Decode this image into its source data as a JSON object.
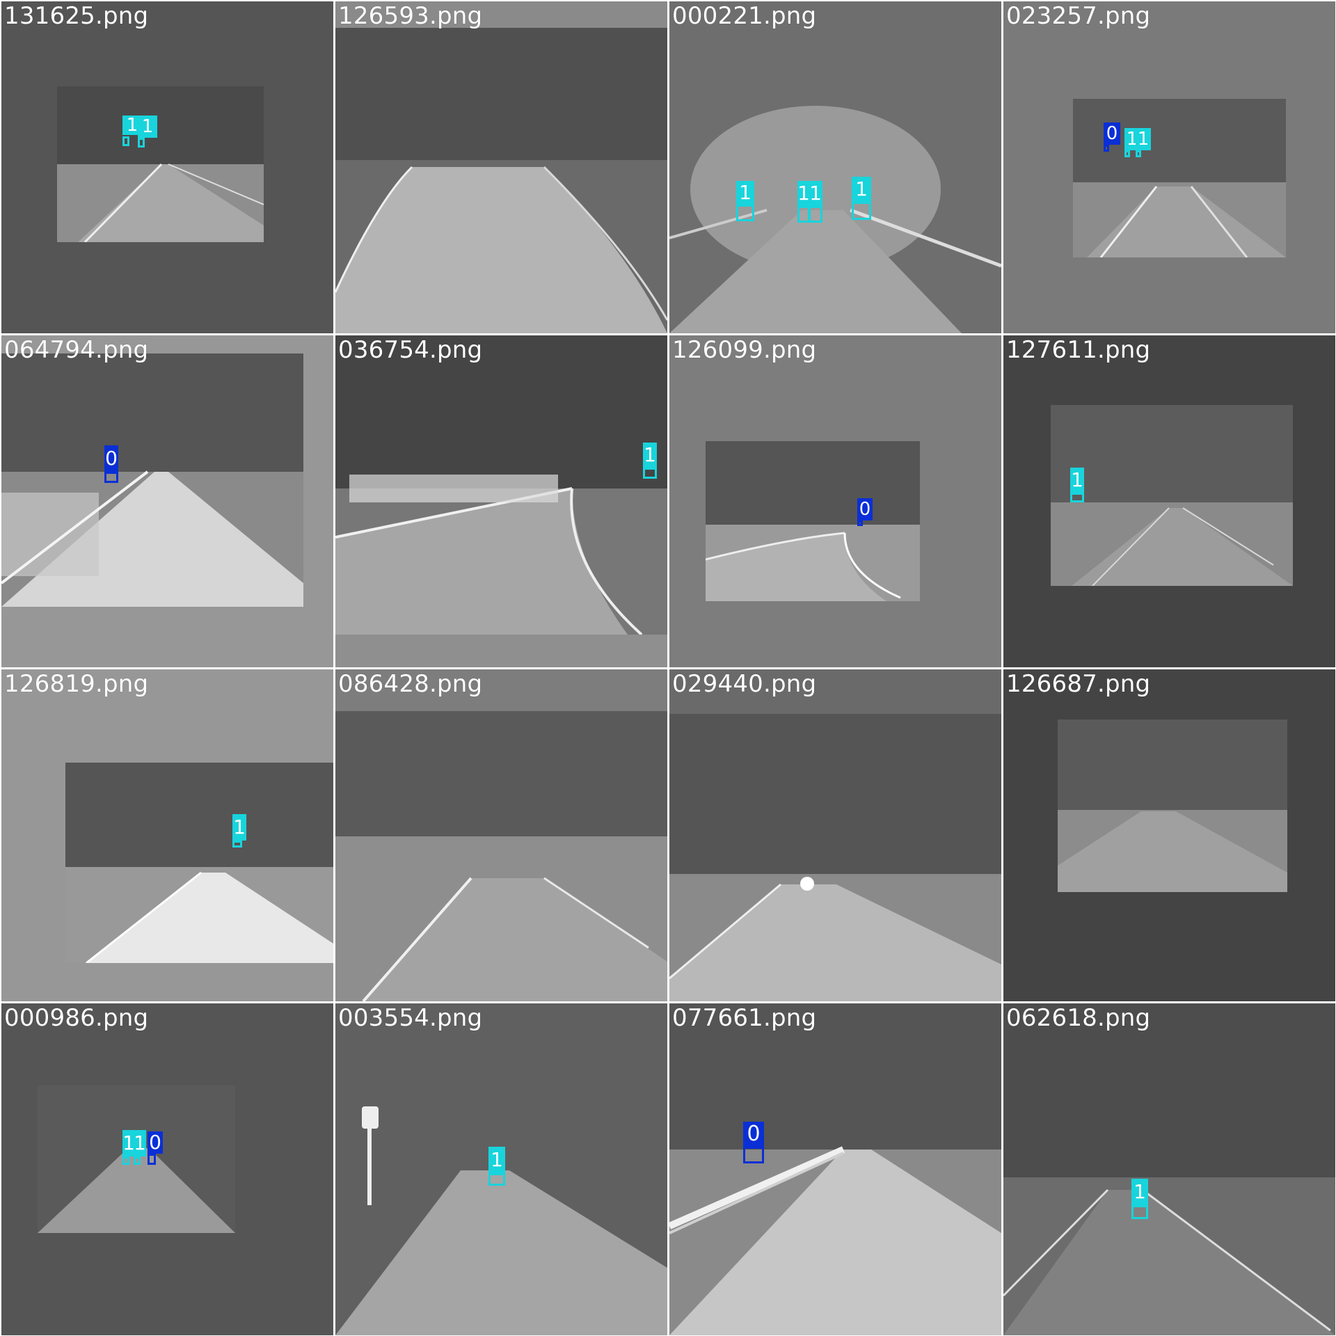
{
  "viewer": {
    "colors": {
      "class_0": "#0a2fd6",
      "class_1": "#18d4dc",
      "label_text": "#ffffff"
    },
    "tiles": [
      {
        "filename": "131625.png",
        "detections": [
          {
            "label": "1"
          },
          {
            "label": "1"
          }
        ]
      },
      {
        "filename": "126593.png",
        "detections": []
      },
      {
        "filename": "000221.png",
        "detections": [
          {
            "label": "1"
          },
          {
            "label": "1"
          },
          {
            "label": "1"
          },
          {
            "label": "1"
          }
        ]
      },
      {
        "filename": "023257.png",
        "detections": [
          {
            "label": "0"
          },
          {
            "label": "1"
          },
          {
            "label": "1"
          }
        ]
      },
      {
        "filename": "064794.png",
        "detections": [
          {
            "label": "0"
          }
        ]
      },
      {
        "filename": "036754.png",
        "detections": [
          {
            "label": "1"
          }
        ]
      },
      {
        "filename": "126099.png",
        "detections": [
          {
            "label": "0"
          }
        ]
      },
      {
        "filename": "127611.png",
        "detections": [
          {
            "label": "1"
          }
        ]
      },
      {
        "filename": "126819.png",
        "detections": [
          {
            "label": "1"
          }
        ]
      },
      {
        "filename": "086428.png",
        "detections": []
      },
      {
        "filename": "029440.png",
        "detections": []
      },
      {
        "filename": "126687.png",
        "detections": []
      },
      {
        "filename": "000986.png",
        "detections": [
          {
            "label": "1"
          },
          {
            "label": "1"
          },
          {
            "label": "0"
          }
        ]
      },
      {
        "filename": "003554.png",
        "detections": [
          {
            "label": "1"
          }
        ]
      },
      {
        "filename": "077661.png",
        "detections": [
          {
            "label": "0"
          }
        ]
      },
      {
        "filename": "062618.png",
        "detections": [
          {
            "label": "1"
          }
        ]
      }
    ]
  }
}
